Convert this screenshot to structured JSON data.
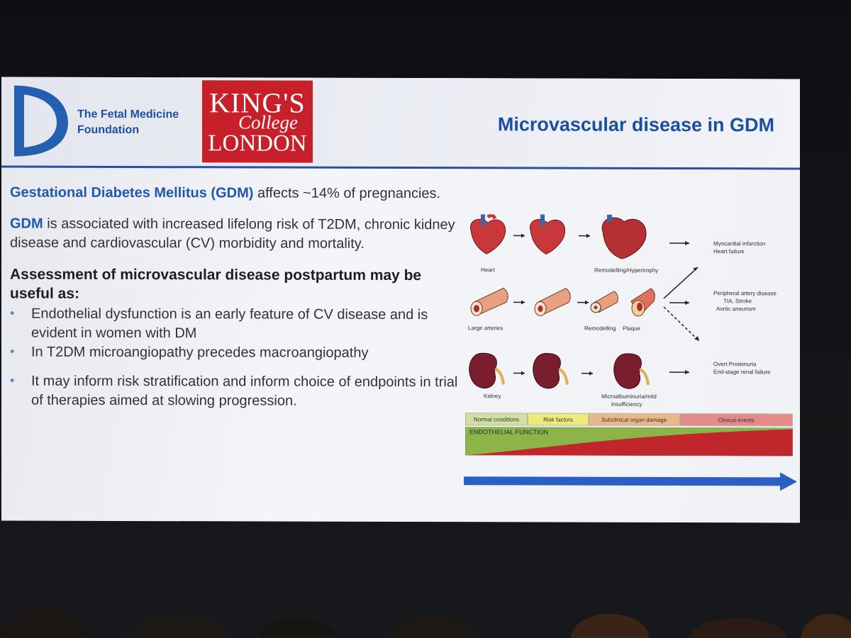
{
  "logos": {
    "fmf_line1": "The Fetal Medicine",
    "fmf_line2": "Foundation",
    "kcl_line1": "KING'S",
    "kcl_line2": "College",
    "kcl_line3": "LONDON"
  },
  "slide_title": "Microvascular disease in GDM",
  "paragraphs": {
    "p1_highlight": "Gestational Diabetes Mellitus (GDM)",
    "p1_text": " affects ~14% of pregnancies.",
    "p2_highlight": "GDM",
    "p2_text": " is associated with increased lifelong risk of T2DM, chronic kidney disease and cardiovascular (CV) morbidity and mortality."
  },
  "assessment_heading": "Assessment of microvascular disease postpartum may be useful as:",
  "bullets": [
    "Endothelial dysfunction is an early feature of CV disease and is evident in women with DM",
    "In T2DM microangiopathy precedes macroangiopathy",
    "It may inform risk stratification and inform choice of endpoints in trial of therapies aimed at slowing progression."
  ],
  "figure": {
    "heart_label": "Heart",
    "heart_remodel_label": "Remodelling/Hypertrophy",
    "heart_outcome_1": "Myocardial infarction",
    "heart_outcome_2": "Heart failure",
    "artery_label": "Large arteries",
    "artery_remodel_label": "Remodelling",
    "plaque_label": "Plaque",
    "artery_outcome_1": "Peripheral artery disease",
    "artery_outcome_2": "TIA, Stroke",
    "artery_outcome_3": "Aortic aneurism",
    "kidney_label": "Kidney",
    "kidney_mid_label_1": "Microalbuminuria/mild",
    "kidney_mid_label_2": "insufficiency",
    "kidney_outcome_1": "Overt Proteinuria",
    "kidney_outcome_2": "End-stage renal failure",
    "stages": [
      "Normal conditions",
      "Risk factors",
      "Subclinical organ damage",
      "Clinical events"
    ],
    "stage_colors": [
      "#cfe0a0",
      "#ecea7a",
      "#e8b88a",
      "#e38a8a"
    ],
    "endothelial_label": "ENDOTHELIAL FUNCTION"
  },
  "colors": {
    "accent_blue": "#1c4fa1",
    "kcl_red": "#c8202a",
    "arrow_blue": "#2c5fc4"
  }
}
